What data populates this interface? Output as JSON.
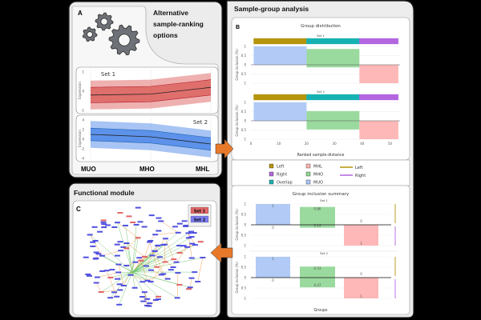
{
  "panel_a": {
    "letter": "A",
    "title_lines": [
      "Alternative",
      "sample-ranking",
      "options"
    ],
    "icon": "gears-icon",
    "x_labels": [
      "MUO",
      "MHO",
      "MHL"
    ],
    "charts": [
      {
        "label": "Set 1",
        "ylabel": "Expression",
        "yticks": [
          "1",
          "0",
          "-1"
        ],
        "color": "#d9534f",
        "mean": [
          -0.2,
          -0.15,
          0.2
        ],
        "inner": 0.4,
        "outer": 0.75,
        "ylim": [
          -1,
          1
        ]
      },
      {
        "label": "Set 2",
        "ylabel": "Expression",
        "yticks": [
          "4",
          "2",
          "0",
          "-2",
          "-4"
        ],
        "color": "#3c7de6",
        "mean": [
          1.0,
          0.5,
          -1.0
        ],
        "inner": 1.3,
        "outer": 2.8,
        "ylim": [
          -4,
          4
        ]
      }
    ]
  },
  "panel_b": {
    "title": "Sample-group analysis",
    "letter": "B",
    "distribution": {
      "title": "Group distribution",
      "ylabel": "Group inclusion (%)",
      "xlabel": "Ranked sample-distance",
      "xticks": [
        "0",
        "10",
        "20",
        "30",
        "40",
        "50"
      ],
      "yticks": [
        "1",
        "0.5",
        "0",
        "0.5",
        "1"
      ]
    },
    "legend": {
      "squares": [
        {
          "label": "Left",
          "color": "#b5950b"
        },
        {
          "label": "Right",
          "color": "#b266e0"
        },
        {
          "label": "Overlap",
          "color": "#17b1b1"
        },
        {
          "label": "MHL",
          "color": "#ffb0b0"
        },
        {
          "label": "MHO",
          "color": "#8fd694"
        },
        {
          "label": "MUO",
          "color": "#a9c4f5"
        }
      ],
      "lines": [
        {
          "label": "Left",
          "color": "#b5950b"
        },
        {
          "label": "Right",
          "color": "#b266e0"
        }
      ]
    },
    "summary": {
      "title": "Group inclusion summary",
      "ylabel": "Group inclusion (%)",
      "xlabel": "Groups",
      "yticks": [
        "1",
        "0.5",
        "0",
        "0.5",
        "1"
      ]
    }
  },
  "panel_c": {
    "title": "Functional module",
    "letter": "C",
    "legend": [
      {
        "label": "Set 1",
        "color": "#e06666"
      },
      {
        "label": "Set 2",
        "color": "#7b7bf0"
      }
    ]
  },
  "colors": {
    "arrow": "#e8792b",
    "edge_orange": "#f2a65a",
    "edge_green": "#6cc46c"
  },
  "chart_data": [
    {
      "type": "bar",
      "title": "Group distribution",
      "xlabel": "Ranked sample-distance",
      "ylabel": "Group inclusion (%)",
      "xlim": [
        0,
        54
      ],
      "ylim": [
        -1,
        1
      ],
      "bands": [
        {
          "name": "Left",
          "range": [
            1,
            20
          ]
        },
        {
          "name": "Overlap",
          "range": [
            20,
            39
          ]
        },
        {
          "name": "Right",
          "range": [
            39,
            53
          ]
        }
      ],
      "sets": [
        {
          "label": "Set 1",
          "bars": [
            {
              "group": "MUO",
              "range": [
                1,
                20
              ],
              "up": 1,
              "down": 0
            },
            {
              "group": "MHO",
              "range": [
                20,
                39
              ],
              "up": 0.86,
              "down": 0.14
            },
            {
              "group": "MHL",
              "range": [
                39,
                53
              ],
              "up": 0,
              "down": 1
            }
          ]
        },
        {
          "label": "Set 2",
          "bars": [
            {
              "group": "MUO",
              "range": [
                1,
                20
              ],
              "up": 1,
              "down": 0
            },
            {
              "group": "MHO",
              "range": [
                20,
                39
              ],
              "up": 0.53,
              "down": 0.47
            },
            {
              "group": "MHL",
              "range": [
                39,
                53
              ],
              "up": 0,
              "down": 1
            }
          ]
        }
      ]
    },
    {
      "type": "bar",
      "title": "Group inclusion summary",
      "xlabel": "Groups",
      "ylabel": "Group inclusion (%)",
      "categories": [
        "MUO",
        "MHO",
        "MHL"
      ],
      "ylim": [
        -1,
        1
      ],
      "sets": [
        {
          "label": "Set 1",
          "up": [
            1,
            0.86,
            0
          ],
          "down": [
            0,
            0.14,
            1
          ]
        },
        {
          "label": "Set 2",
          "up": [
            1,
            0.53,
            0
          ],
          "down": [
            0,
            0.47,
            1
          ]
        }
      ]
    }
  ]
}
